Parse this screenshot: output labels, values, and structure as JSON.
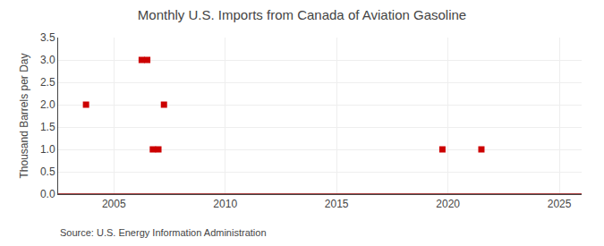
{
  "chart_data": {
    "type": "scatter",
    "title": "Monthly U.S. Imports from Canada of Aviation Gasoline",
    "ylabel": "Thousand Barrels per Day",
    "annotations": [
      "Source: U.S. Energy Information Administration"
    ],
    "series": [
      {
        "type": "line",
        "color": "#8b0000",
        "line_style": "solid",
        "x": [
          2002.5,
          2026
        ],
        "values": [
          0,
          0
        ]
      },
      {
        "type": "scatter",
        "color": "#cc0000",
        "marker": "square",
        "x": [
          2003.75,
          2006.25,
          2006.5,
          2006.75,
          2007.0,
          2007.25,
          2019.75,
          2021.5
        ],
        "values": [
          2.0,
          3.0,
          3.0,
          1.0,
          1.0,
          2.0,
          1.0,
          1.0
        ]
      }
    ],
    "xlim": [
      2002.5,
      2026
    ],
    "ylim": [
      0,
      3.5
    ],
    "xticks": [
      2005,
      2010,
      2015,
      2020,
      2025
    ],
    "yticks": [
      {
        "value": 0.0,
        "label": "0.0"
      },
      0.5,
      {
        "value": 1.0,
        "label": "1.0"
      },
      1.5,
      {
        "value": 2.0,
        "label": "2.0"
      },
      2.5,
      {
        "value": 3.0,
        "label": "3.0"
      },
      3.5
    ],
    "grid": true
  }
}
